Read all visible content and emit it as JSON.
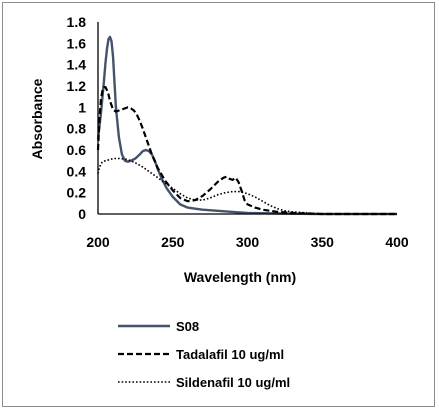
{
  "chart_data": {
    "type": "line",
    "title": "",
    "xlabel": "Wavelength (nm)",
    "ylabel": "Absorbance",
    "xlim": [
      200,
      400
    ],
    "ylim": [
      0,
      1.8
    ],
    "x_ticks": [
      "200",
      "250",
      "300",
      "350",
      "400"
    ],
    "y_ticks": [
      "0",
      "0.2",
      "0.4",
      "0.6",
      "0.8",
      "1",
      "1.2",
      "1.4",
      "1.6",
      "1.8"
    ],
    "grid": false,
    "legend_position": "bottom",
    "series": [
      {
        "name": "S08",
        "style": "solid",
        "color": "#44546a",
        "x": [
          200,
          202,
          204,
          205,
          206,
          207,
          208,
          209,
          210,
          211,
          212,
          214,
          216,
          218,
          220,
          222,
          225,
          228,
          230,
          232,
          234,
          236,
          238,
          240,
          243,
          246,
          250,
          255,
          260,
          265,
          270,
          280,
          290,
          300,
          320,
          350,
          400
        ],
        "y": [
          0.7,
          0.95,
          1.25,
          1.42,
          1.55,
          1.64,
          1.66,
          1.62,
          1.48,
          1.25,
          1.0,
          0.72,
          0.56,
          0.5,
          0.49,
          0.5,
          0.52,
          0.56,
          0.59,
          0.6,
          0.59,
          0.56,
          0.5,
          0.42,
          0.32,
          0.24,
          0.16,
          0.09,
          0.06,
          0.05,
          0.04,
          0.03,
          0.02,
          0.01,
          0.005,
          0.0,
          0.0
        ]
      },
      {
        "name": "Tadalafil 10 ug/ml",
        "style": "dashed",
        "color": "#000000",
        "x": [
          200,
          201,
          202,
          203,
          204,
          205,
          206,
          207,
          208,
          210,
          212,
          214,
          216,
          218,
          220,
          222,
          224,
          226,
          228,
          230,
          233,
          236,
          240,
          245,
          250,
          255,
          260,
          265,
          270,
          275,
          280,
          284,
          286,
          288,
          290,
          292,
          294,
          296,
          298,
          300,
          305,
          310,
          320,
          330,
          340,
          350,
          400
        ],
        "y": [
          0.6,
          0.9,
          1.08,
          1.16,
          1.19,
          1.19,
          1.16,
          1.12,
          1.06,
          0.98,
          0.96,
          0.97,
          0.98,
          0.99,
          1.0,
          0.99,
          0.97,
          0.93,
          0.87,
          0.8,
          0.68,
          0.56,
          0.43,
          0.31,
          0.22,
          0.15,
          0.12,
          0.13,
          0.17,
          0.23,
          0.3,
          0.34,
          0.35,
          0.33,
          0.32,
          0.34,
          0.3,
          0.22,
          0.13,
          0.09,
          0.06,
          0.04,
          0.02,
          0.01,
          0.005,
          0.0,
          0.0
        ]
      },
      {
        "name": "Sildenafil 10 ug/ml",
        "style": "dotted",
        "color": "#000000",
        "x": [
          200,
          201,
          202,
          203,
          205,
          208,
          210,
          215,
          220,
          225,
          230,
          235,
          240,
          245,
          250,
          255,
          260,
          265,
          270,
          275,
          280,
          285,
          290,
          295,
          300,
          305,
          310,
          315,
          320,
          325,
          330,
          340,
          350,
          400
        ],
        "y": [
          0.38,
          0.44,
          0.47,
          0.49,
          0.5,
          0.51,
          0.52,
          0.52,
          0.51,
          0.48,
          0.44,
          0.39,
          0.34,
          0.29,
          0.24,
          0.19,
          0.15,
          0.13,
          0.13,
          0.15,
          0.18,
          0.2,
          0.21,
          0.21,
          0.19,
          0.16,
          0.12,
          0.08,
          0.05,
          0.03,
          0.02,
          0.01,
          0.0,
          0.0
        ]
      }
    ]
  }
}
